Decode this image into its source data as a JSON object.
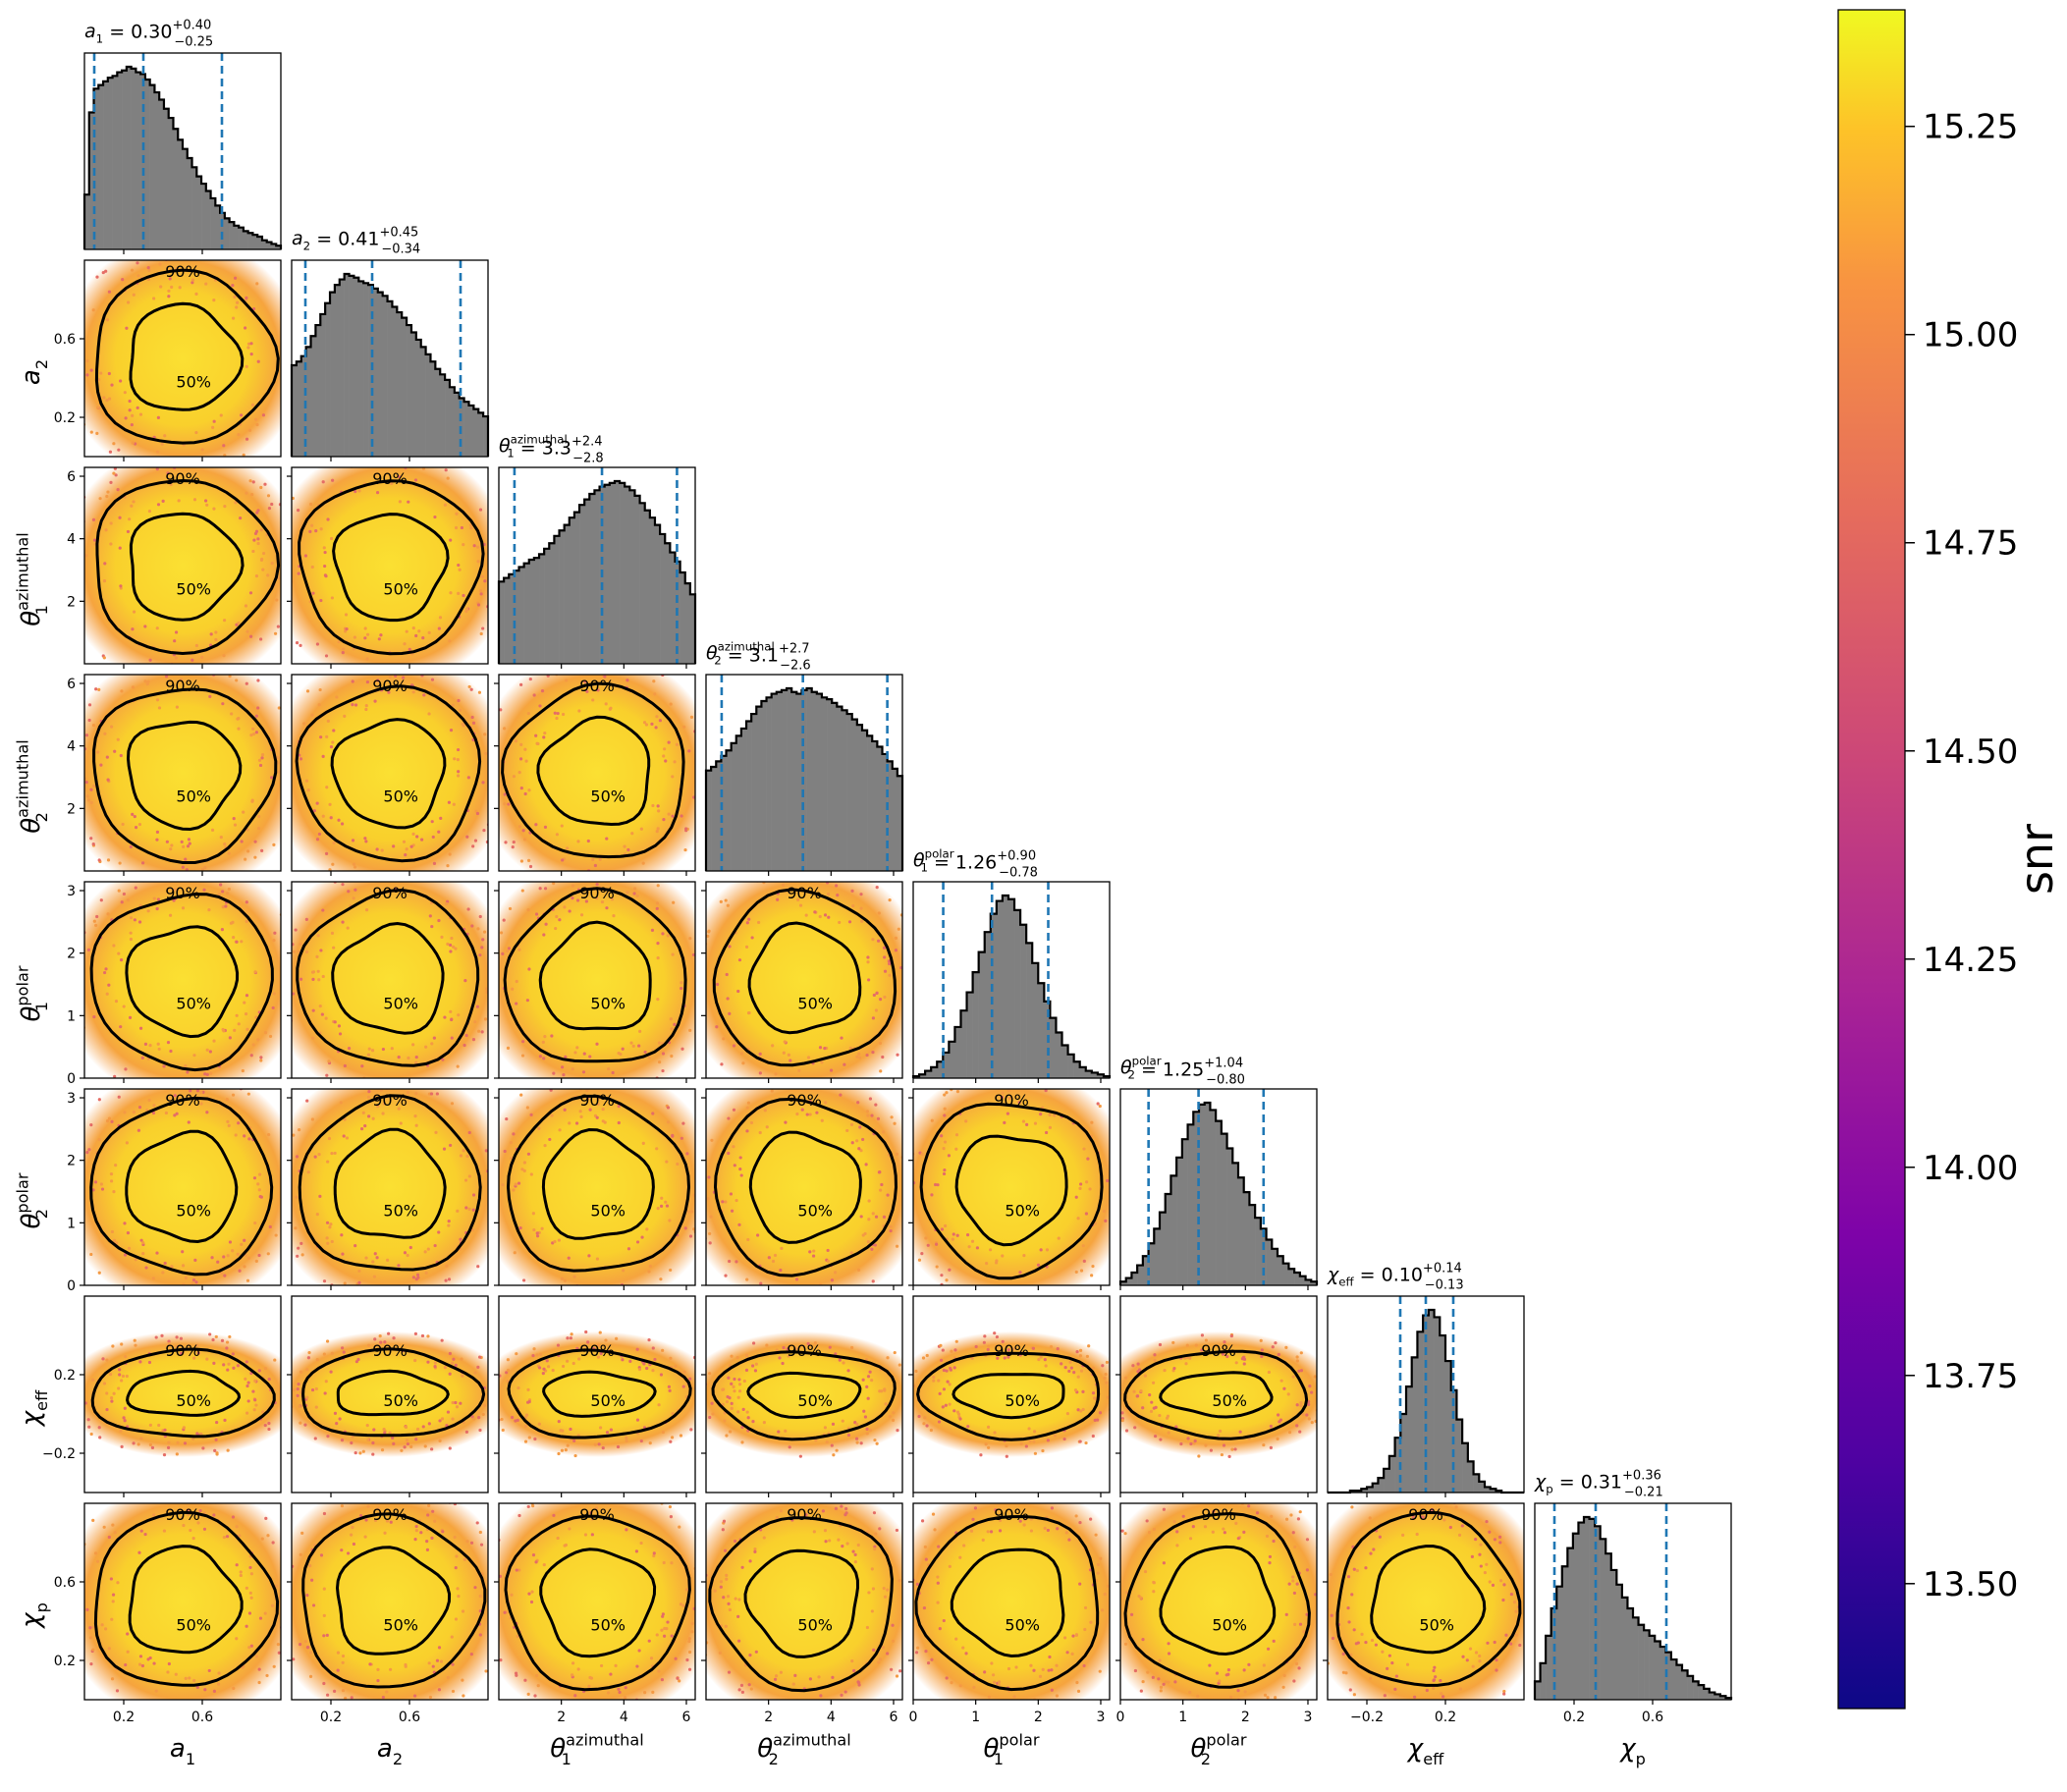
{
  "chart_data": {
    "type": "corner",
    "params": [
      {
        "key": "a1",
        "label": "a",
        "sub": "1",
        "sup": "",
        "lo": 0.0,
        "hi": 1.0,
        "ticks": [
          0.2,
          0.6
        ],
        "title_value": "0.30",
        "title_plus": "+0.40",
        "title_minus": "−0.25",
        "quantiles": [
          0.05,
          0.3,
          0.7
        ],
        "hist": [
          0.3,
          0.75,
          0.88,
          0.9,
          0.92,
          0.94,
          0.95,
          0.97,
          0.98,
          1.0,
          0.99,
          0.97,
          0.96,
          0.93,
          0.9,
          0.86,
          0.82,
          0.77,
          0.72,
          0.66,
          0.6,
          0.55,
          0.5,
          0.45,
          0.4,
          0.36,
          0.32,
          0.28,
          0.24,
          0.2,
          0.17,
          0.15,
          0.13,
          0.12,
          0.1,
          0.09,
          0.08,
          0.07,
          0.05,
          0.04,
          0.03,
          0.02
        ]
      },
      {
        "key": "a2",
        "label": "a",
        "sub": "2",
        "sup": "",
        "lo": 0.0,
        "hi": 1.0,
        "ticks": [
          0.2,
          0.6
        ],
        "title_value": "0.41",
        "title_plus": "+0.45",
        "title_minus": "−0.34",
        "quantiles": [
          0.07,
          0.41,
          0.86
        ],
        "hist": [
          0.5,
          0.52,
          0.55,
          0.6,
          0.66,
          0.72,
          0.78,
          0.84,
          0.9,
          0.94,
          0.97,
          1.0,
          0.99,
          0.98,
          0.96,
          0.95,
          0.94,
          0.92,
          0.9,
          0.88,
          0.85,
          0.82,
          0.79,
          0.76,
          0.72,
          0.68,
          0.64,
          0.6,
          0.56,
          0.52,
          0.48,
          0.45,
          0.42,
          0.38,
          0.35,
          0.32,
          0.3,
          0.28,
          0.26,
          0.24,
          0.22
        ]
      },
      {
        "key": "t1a",
        "label": "θ",
        "sub": "1",
        "sup": "azimuthal",
        "lo": 0.0,
        "hi": 6.2832,
        "ticks": [
          2,
          4,
          6
        ],
        "title_value": "3.3",
        "title_plus": "+2.4",
        "title_minus": "−2.8",
        "quantiles": [
          0.5,
          3.3,
          5.7
        ],
        "hist": [
          0.45,
          0.47,
          0.49,
          0.51,
          0.53,
          0.55,
          0.57,
          0.58,
          0.6,
          0.63,
          0.66,
          0.7,
          0.73,
          0.76,
          0.8,
          0.83,
          0.87,
          0.9,
          0.93,
          0.95,
          0.97,
          0.98,
          0.99,
          1.0,
          0.99,
          0.97,
          0.95,
          0.92,
          0.88,
          0.84,
          0.8,
          0.76,
          0.71,
          0.66,
          0.61,
          0.56,
          0.5,
          0.44,
          0.38
        ]
      },
      {
        "key": "t2a",
        "label": "θ",
        "sub": "2",
        "sup": "azimuthal",
        "lo": 0.0,
        "hi": 6.2832,
        "ticks": [
          2,
          4,
          6
        ],
        "title_value": "3.1",
        "title_plus": "+2.7",
        "title_minus": "−2.6",
        "quantiles": [
          0.5,
          3.1,
          5.8
        ],
        "hist": [
          0.55,
          0.57,
          0.6,
          0.63,
          0.66,
          0.7,
          0.74,
          0.78,
          0.82,
          0.86,
          0.9,
          0.93,
          0.95,
          0.97,
          0.98,
          0.99,
          1.0,
          0.98,
          0.97,
          0.99,
          1.0,
          0.98,
          0.97,
          0.95,
          0.94,
          0.92,
          0.9,
          0.88,
          0.86,
          0.83,
          0.8,
          0.77,
          0.74,
          0.71,
          0.68,
          0.64,
          0.6,
          0.56,
          0.52
        ]
      },
      {
        "key": "t1p",
        "label": "θ",
        "sub": "1",
        "sup": "polar",
        "lo": 0.0,
        "hi": 3.1416,
        "ticks": [
          0,
          1,
          2,
          3
        ],
        "title_value": "1.26",
        "title_plus": "+0.90",
        "title_minus": "−0.78",
        "quantiles": [
          0.48,
          1.26,
          2.16
        ],
        "hist": [
          0.01,
          0.02,
          0.04,
          0.06,
          0.09,
          0.14,
          0.2,
          0.28,
          0.37,
          0.47,
          0.58,
          0.69,
          0.8,
          0.9,
          0.97,
          1.0,
          0.98,
          0.92,
          0.84,
          0.74,
          0.63,
          0.52,
          0.42,
          0.33,
          0.25,
          0.18,
          0.13,
          0.09,
          0.06,
          0.04,
          0.03,
          0.02,
          0.01
        ]
      },
      {
        "key": "t2p",
        "label": "θ",
        "sub": "2",
        "sup": "polar",
        "lo": 0.0,
        "hi": 3.1416,
        "ticks": [
          0,
          1,
          2,
          3
        ],
        "title_value": "1.25",
        "title_plus": "+1.04",
        "title_minus": "−0.80",
        "quantiles": [
          0.45,
          1.25,
          2.29
        ],
        "hist": [
          0.02,
          0.04,
          0.07,
          0.11,
          0.16,
          0.23,
          0.31,
          0.4,
          0.5,
          0.6,
          0.7,
          0.8,
          0.88,
          0.95,
          0.99,
          1.0,
          0.96,
          0.9,
          0.83,
          0.75,
          0.67,
          0.59,
          0.51,
          0.44,
          0.37,
          0.31,
          0.25,
          0.2,
          0.16,
          0.12,
          0.09,
          0.07,
          0.05,
          0.03,
          0.02
        ]
      },
      {
        "key": "chieff",
        "label": "χ",
        "sub": "eff",
        "sup": "",
        "lo": -0.4,
        "hi": 0.6,
        "ticks": [
          -0.2,
          0.2
        ],
        "title_value": "0.10",
        "title_plus": "+0.14",
        "title_minus": "−0.13",
        "quantiles": [
          -0.03,
          0.1,
          0.24
        ],
        "hist": [
          0.0,
          0.0,
          0.0,
          0.0,
          0.01,
          0.01,
          0.02,
          0.03,
          0.05,
          0.08,
          0.13,
          0.2,
          0.3,
          0.43,
          0.58,
          0.74,
          0.88,
          0.97,
          1.0,
          0.96,
          0.86,
          0.72,
          0.56,
          0.4,
          0.27,
          0.17,
          0.1,
          0.06,
          0.03,
          0.02,
          0.01,
          0.0,
          0.0,
          0.0,
          0.0
        ]
      },
      {
        "key": "chip",
        "label": "χ",
        "sub": "p",
        "sup": "",
        "lo": 0.0,
        "hi": 1.0,
        "ticks": [
          0.2,
          0.6
        ],
        "title_value": "0.31",
        "title_plus": "+0.36",
        "title_minus": "−0.21",
        "quantiles": [
          0.1,
          0.31,
          0.67
        ],
        "hist": [
          0.1,
          0.2,
          0.35,
          0.5,
          0.62,
          0.73,
          0.83,
          0.91,
          0.97,
          1.0,
          0.99,
          0.95,
          0.88,
          0.8,
          0.71,
          0.63,
          0.56,
          0.5,
          0.45,
          0.41,
          0.38,
          0.35,
          0.32,
          0.29,
          0.26,
          0.22,
          0.19,
          0.16,
          0.13,
          0.1,
          0.08,
          0.06,
          0.04,
          0.03,
          0.02,
          0.01
        ]
      }
    ],
    "contour_levels": [
      "50%",
      "90%"
    ],
    "colorbar": {
      "label": "snr",
      "min": 13.35,
      "max": 15.39,
      "ticks": [
        "13.50",
        "13.75",
        "14.00",
        "14.25",
        "14.50",
        "14.75",
        "15.00",
        "15.25"
      ],
      "colormap": "plasma"
    },
    "colors": {
      "hist_fill": "#808080",
      "hist_edge": "#000000",
      "quantile_line": "#1f77b4",
      "contour": "#000000",
      "scatter_core": "#f9d62f",
      "scatter_edge": "#e56d66"
    }
  }
}
